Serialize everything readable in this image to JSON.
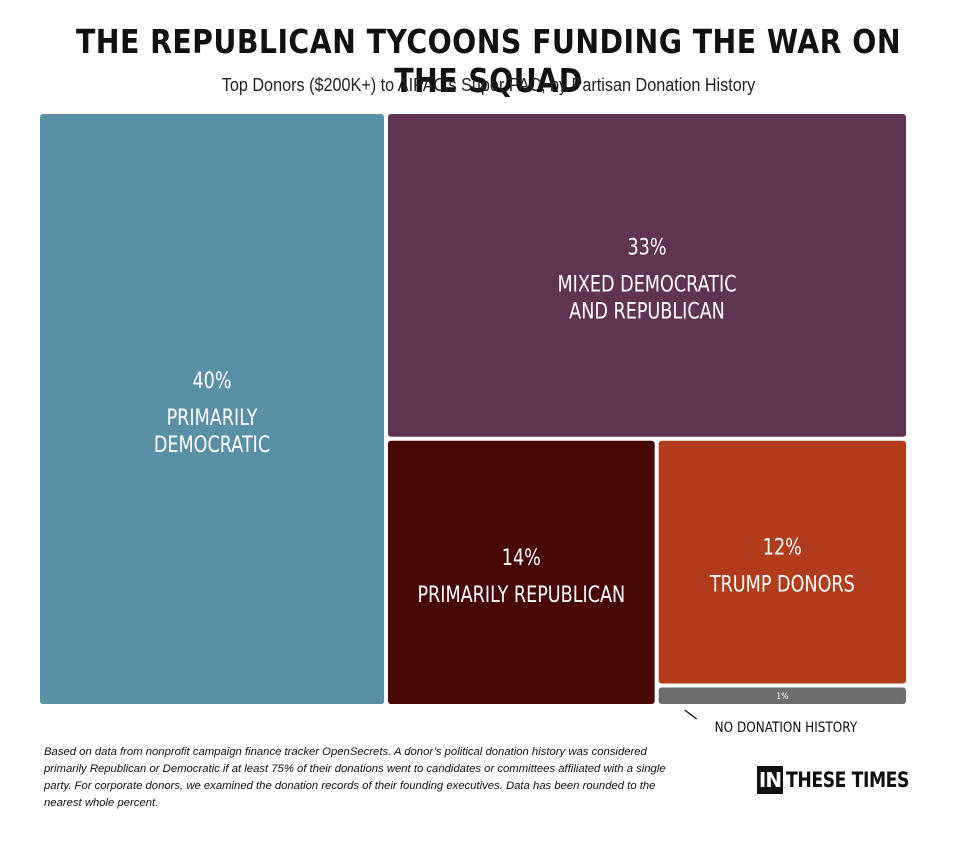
{
  "title": "THE REPUBLICAN TYCOONS FUNDING THE WAR ON THE SQUAD",
  "subtitle": "Top Donors ($200K+) to AIPAC’s Super PAC, by Partisan Donation History",
  "chart_data": {
    "type": "treemap",
    "title": "THE REPUBLICAN TYCOONS FUNDING THE WAR ON THE SQUAD",
    "subtitle": "Top Donors ($200K+) to AIPAC’s Super PAC, by Partisan Donation History",
    "unit": "%",
    "segments": [
      {
        "name": "PRIMARILY DEMOCRATIC",
        "lines": [
          "PRIMARILY",
          "DEMOCRATIC"
        ],
        "value": 40,
        "value_label": "40%",
        "color": "#5a90a6"
      },
      {
        "name": "MIXED DEMOCRATIC AND REPUBLICAN",
        "lines": [
          "MIXED DEMOCRATIC",
          "AND REPUBLICAN"
        ],
        "value": 33,
        "value_label": "33%",
        "color": "#5f3450"
      },
      {
        "name": "PRIMARILY REPUBLICAN",
        "lines": [
          "PRIMARILY REPUBLICAN"
        ],
        "value": 14,
        "value_label": "14%",
        "color": "#470705"
      },
      {
        "name": "TRUMP DONORS",
        "lines": [
          "TRUMP DONORS"
        ],
        "value": 12,
        "value_label": "12%",
        "color": "#b03c1c"
      },
      {
        "name": "NO DONATION HISTORY",
        "lines": [
          "NO DONATION HISTORY"
        ],
        "value": 1,
        "value_label": "1%",
        "color": "#6e6e6e",
        "label_outside": true
      }
    ]
  },
  "footnote": "Based on data from nonprofit campaign finance tracker OpenSecrets. A donor’s political donation history was considered primarily Republican or Democratic if at least 75% of their donations went to candidates or committees affiliated with a single party. For corporate donors, we examined the donation records of their founding executives. Data has been rounded to the nearest whole percent.",
  "logo": {
    "box": "IN",
    "text": "THESE TIMES"
  }
}
